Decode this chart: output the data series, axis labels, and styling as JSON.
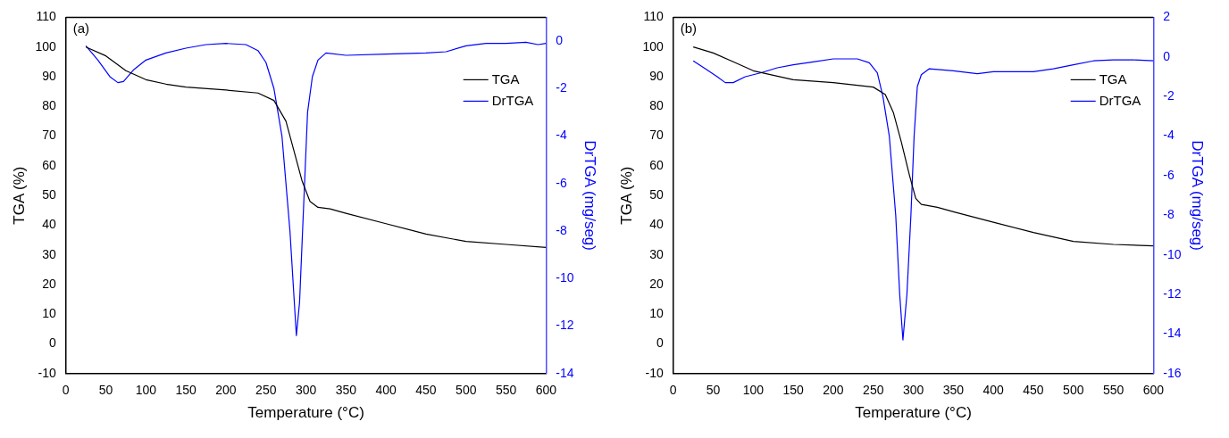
{
  "chart_data": [
    {
      "type": "line",
      "xlabel": "Temperature (°C)",
      "ylabel": "TGA (%)",
      "y2label": "DrTGA (mg/seg)",
      "annotations": [
        "(a)"
      ],
      "legend": "top right",
      "grid": false,
      "xlim": [
        0,
        600
      ],
      "xticks": [
        0,
        50,
        100,
        150,
        200,
        250,
        300,
        350,
        400,
        450,
        500,
        550,
        600
      ],
      "ylim": [
        -10,
        110
      ],
      "yticks": [
        -10,
        0,
        10,
        20,
        30,
        40,
        50,
        60,
        70,
        80,
        90,
        100,
        110
      ],
      "y2lim": [
        -14,
        1
      ],
      "y2ticks": [
        -14,
        -12,
        -10,
        -8,
        -6,
        -4,
        -2,
        0
      ],
      "series": [
        {
          "name": "TGA",
          "color": "#000000",
          "x": [
            25,
            50,
            75,
            100,
            125,
            150,
            200,
            240,
            260,
            275,
            285,
            295,
            305,
            315,
            330,
            350,
            400,
            450,
            500,
            550,
            600
          ],
          "values": [
            100,
            97,
            92,
            89,
            87.5,
            86.5,
            85.5,
            84.5,
            82,
            75,
            65,
            55,
            48,
            46,
            45.5,
            44,
            40.5,
            37,
            34.5,
            33.5,
            32.5
          ]
        },
        {
          "name": "DrTGA",
          "color": "#0000ff",
          "axis": "y2",
          "x": [
            25,
            40,
            55,
            65,
            72,
            85,
            100,
            125,
            150,
            175,
            200,
            225,
            240,
            250,
            260,
            270,
            280,
            288,
            292,
            297,
            302,
            308,
            315,
            325,
            350,
            400,
            450,
            475,
            500,
            525,
            550,
            575,
            590,
            600
          ],
          "values": [
            -0.2,
            -0.8,
            -1.5,
            -1.75,
            -1.7,
            -1.2,
            -0.8,
            -0.5,
            -0.3,
            -0.15,
            -0.1,
            -0.15,
            -0.4,
            -0.9,
            -2,
            -4,
            -8,
            -12.4,
            -11,
            -7,
            -3,
            -1.5,
            -0.8,
            -0.5,
            -0.6,
            -0.55,
            -0.5,
            -0.45,
            -0.2,
            -0.1,
            -0.1,
            -0.05,
            -0.15,
            -0.1
          ]
        }
      ]
    },
    {
      "type": "line",
      "xlabel": "Temperature (°C)",
      "ylabel": "TGA (%)",
      "y2label": "DrTGA (mg/seg)",
      "annotations": [
        "(b)"
      ],
      "legend": "top right",
      "grid": false,
      "xlim": [
        0,
        600
      ],
      "xticks": [
        0,
        50,
        100,
        150,
        200,
        250,
        300,
        350,
        400,
        450,
        500,
        550,
        600
      ],
      "ylim": [
        -10,
        110
      ],
      "yticks": [
        -10,
        0,
        10,
        20,
        30,
        40,
        50,
        60,
        70,
        80,
        90,
        100,
        110
      ],
      "y2lim": [
        -16,
        2
      ],
      "y2ticks": [
        -16,
        -14,
        -12,
        -10,
        -8,
        -6,
        -4,
        -2,
        0,
        2
      ],
      "series": [
        {
          "name": "TGA",
          "color": "#000000",
          "x": [
            25,
            50,
            75,
            100,
            125,
            150,
            200,
            250,
            265,
            275,
            285,
            295,
            303,
            310,
            330,
            350,
            400,
            450,
            500,
            550,
            600
          ],
          "values": [
            100,
            98,
            95,
            92,
            90.5,
            89,
            88,
            86.5,
            84,
            78,
            68,
            57,
            49,
            47,
            46,
            44.5,
            41,
            37.5,
            34.5,
            33.5,
            33
          ]
        },
        {
          "name": "DrTGA",
          "color": "#0000ff",
          "axis": "y2",
          "x": [
            25,
            40,
            55,
            65,
            75,
            90,
            110,
            130,
            150,
            175,
            200,
            230,
            245,
            255,
            262,
            270,
            278,
            283,
            287,
            292,
            297,
            301,
            305,
            310,
            320,
            350,
            380,
            400,
            450,
            475,
            500,
            525,
            550,
            575,
            600
          ],
          "values": [
            -0.2,
            -0.6,
            -1,
            -1.3,
            -1.3,
            -1,
            -0.8,
            -0.55,
            -0.4,
            -0.25,
            -0.1,
            -0.1,
            -0.3,
            -0.8,
            -2,
            -4,
            -8,
            -12,
            -14.3,
            -12,
            -8,
            -4,
            -1.5,
            -0.9,
            -0.6,
            -0.7,
            -0.85,
            -0.75,
            -0.75,
            -0.6,
            -0.4,
            -0.2,
            -0.15,
            -0.15,
            -0.2
          ]
        }
      ]
    }
  ]
}
